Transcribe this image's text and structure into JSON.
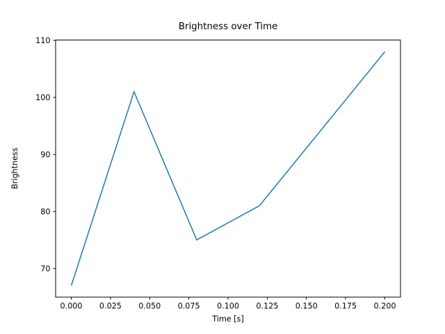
{
  "figure": {
    "background": "#ffffff",
    "spine_color": "#000000",
    "tick_color": "#000000",
    "text_color": "#000000"
  },
  "chart_data": {
    "type": "line",
    "title": "Brightness over Time",
    "xlabel": "Time [s]",
    "ylabel": "Brightness",
    "x": [
      0.0,
      0.04,
      0.08,
      0.12,
      0.2
    ],
    "y": [
      67,
      101,
      75,
      81,
      108
    ],
    "series": [
      {
        "name": "brightness",
        "color": "#1f77b4",
        "line_width": 1.5
      }
    ],
    "x_ticks": {
      "values": [
        0.0,
        0.025,
        0.05,
        0.075,
        0.1,
        0.125,
        0.15,
        0.175,
        0.2
      ],
      "labels": [
        "0.000",
        "0.025",
        "0.050",
        "0.075",
        "0.100",
        "0.125",
        "0.150",
        "0.175",
        "0.200"
      ]
    },
    "y_ticks": {
      "values": [
        70,
        80,
        90,
        100,
        110
      ],
      "labels": [
        "70",
        "80",
        "90",
        "100",
        "110"
      ]
    },
    "xlim": [
      -0.01,
      0.21
    ],
    "ylim": [
      64.95,
      110.05
    ],
    "grid": false,
    "legend": "none"
  }
}
